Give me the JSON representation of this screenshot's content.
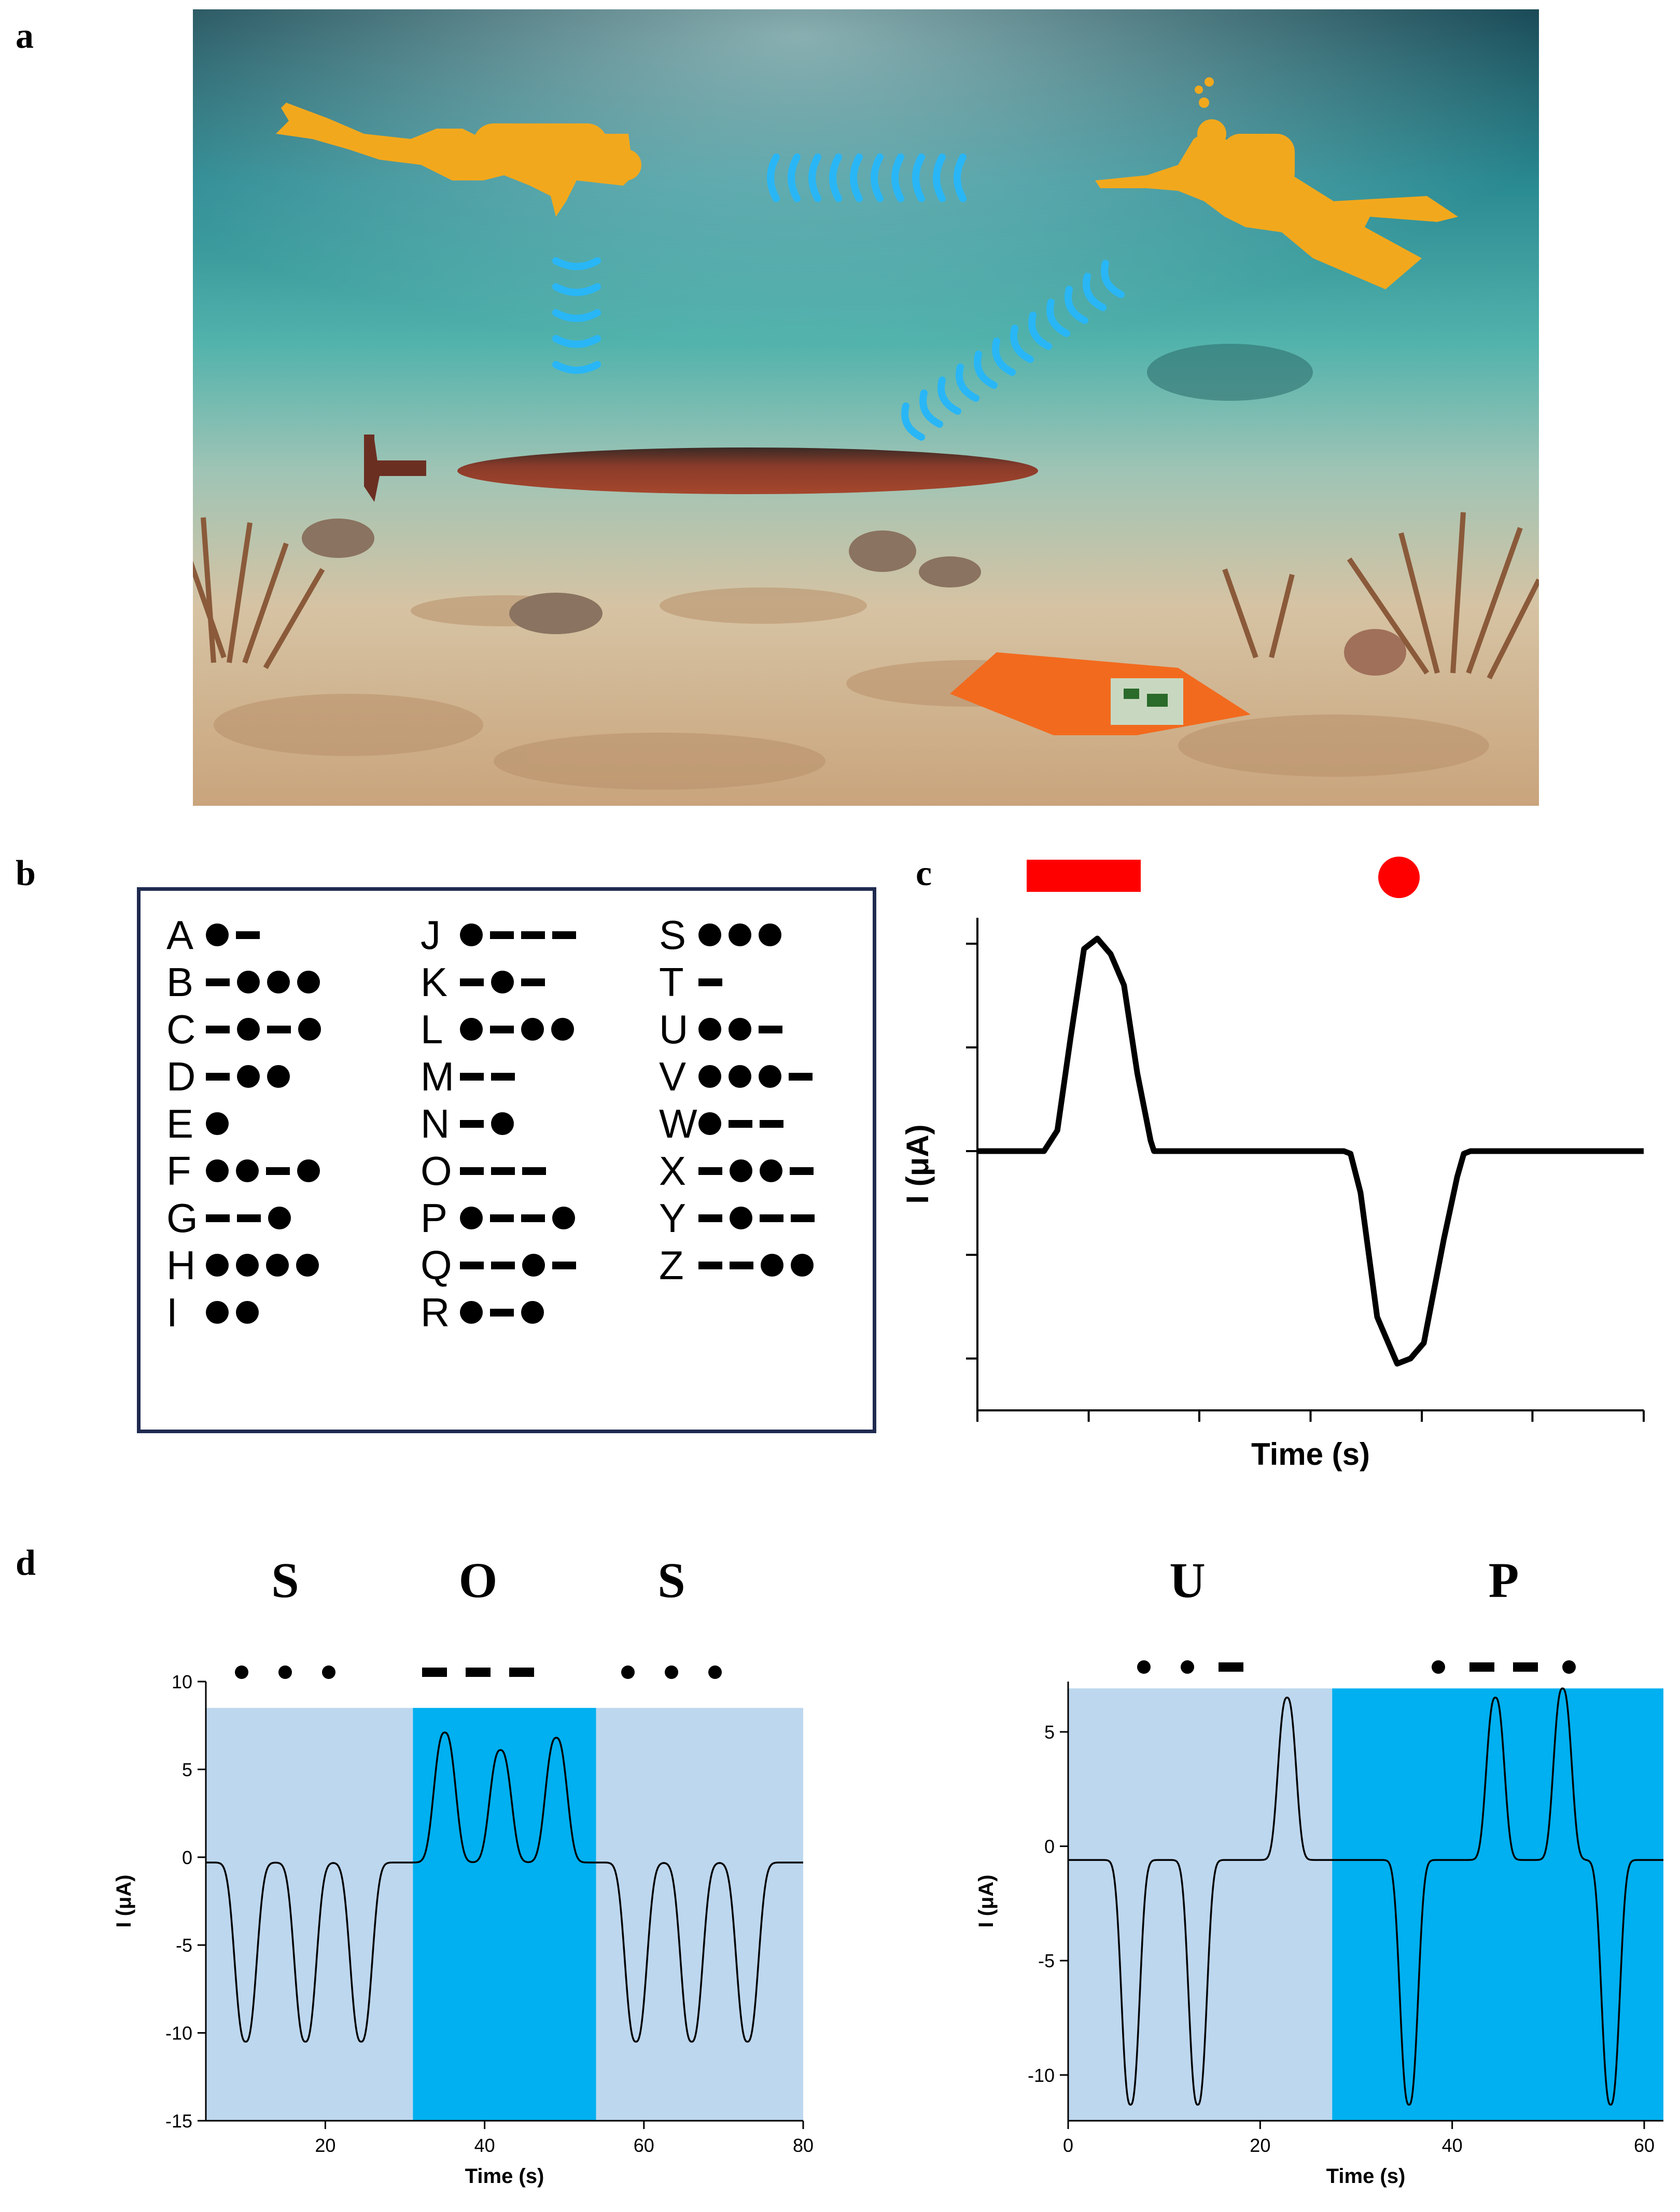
{
  "panels": {
    "a": "a",
    "b": "b",
    "c": "c",
    "d": "d"
  },
  "scene": {
    "description_icons": [
      "diver-left-icon",
      "diver-right-icon",
      "submarine-icon",
      "sensor-device-icon",
      "signal-wave-icon"
    ],
    "colors": {
      "water_top": "#0f4a58",
      "water_mid": "#2b9aa0",
      "sand": "#d8bc97",
      "diver": "#f2a81d",
      "wave": "#29b6f6",
      "submarine": "#8a3b2a",
      "device": "#f26a1e"
    }
  },
  "morse_table": {
    "columns": [
      [
        {
          "letter": "A",
          "code": ".-"
        },
        {
          "letter": "B",
          "code": "-..."
        },
        {
          "letter": "C",
          "code": "-.-."
        },
        {
          "letter": "D",
          "code": "-.."
        },
        {
          "letter": "E",
          "code": "."
        },
        {
          "letter": "F",
          "code": "..-."
        },
        {
          "letter": "G",
          "code": "--."
        },
        {
          "letter": "H",
          "code": "...."
        },
        {
          "letter": "I",
          "code": ".."
        }
      ],
      [
        {
          "letter": "J",
          "code": ".---"
        },
        {
          "letter": "K",
          "code": "-.-"
        },
        {
          "letter": "L",
          "code": ".-.."
        },
        {
          "letter": "M",
          "code": "--"
        },
        {
          "letter": "N",
          "code": "-."
        },
        {
          "letter": "O",
          "code": "---"
        },
        {
          "letter": "P",
          "code": ".--."
        },
        {
          "letter": "Q",
          "code": "--.-"
        },
        {
          "letter": "R",
          "code": ".-."
        }
      ],
      [
        {
          "letter": "S",
          "code": "..."
        },
        {
          "letter": "T",
          "code": "-"
        },
        {
          "letter": "U",
          "code": "..-"
        },
        {
          "letter": "V",
          "code": "...-"
        },
        {
          "letter": "W",
          "code": ".--"
        },
        {
          "letter": "X",
          "code": "-..-"
        },
        {
          "letter": "Y",
          "code": "-.--"
        },
        {
          "letter": "Z",
          "code": "--.."
        }
      ]
    ]
  },
  "chart_data": [
    {
      "id": "c",
      "type": "line",
      "xlabel": "Time (s)",
      "ylabel": "I (μA)",
      "legend_symbols": [
        {
          "shape": "dash",
          "color": "#ff0000"
        },
        {
          "shape": "dot",
          "color": "#ff0000"
        }
      ],
      "xlim": [
        0,
        10
      ],
      "ylim": [
        -5,
        4.5
      ],
      "x_ticks": [
        0,
        1.67,
        3.33,
        5,
        6.67,
        8.33,
        10
      ],
      "y_ticks": [
        -4,
        -2,
        0,
        2,
        4
      ],
      "series": [
        {
          "color": "#000000",
          "x": [
            0,
            1.0,
            1.05,
            1.2,
            1.4,
            1.6,
            1.8,
            2.0,
            2.2,
            2.4,
            2.6,
            2.65,
            2.7,
            3.5,
            5.5,
            5.6,
            5.75,
            6.0,
            6.3,
            6.5,
            6.7,
            7.0,
            7.2,
            7.3,
            7.4,
            7.5,
            8.5,
            10
          ],
          "y": [
            0,
            0,
            0.1,
            0.4,
            2.2,
            3.9,
            4.1,
            3.8,
            3.2,
            1.5,
            0.2,
            0,
            0,
            0,
            0,
            -0.05,
            -0.8,
            -3.2,
            -4.1,
            -4.0,
            -3.7,
            -1.7,
            -0.5,
            -0.05,
            0,
            0,
            0,
            0
          ]
        }
      ]
    },
    {
      "id": "d-left",
      "type": "line",
      "xlabel": "Time (s)",
      "ylabel": "I (μA)",
      "xlim": [
        5,
        80
      ],
      "ylim": [
        -15,
        10
      ],
      "x_ticks": [
        20,
        40,
        60,
        80
      ],
      "y_ticks": [
        -15,
        -10,
        -5,
        0,
        5,
        10
      ],
      "letters": [
        "S",
        "O",
        "S"
      ],
      "letter_codes": [
        "...",
        "---",
        "..."
      ],
      "shaded_regions": [
        {
          "x0": 5,
          "x1": 31,
          "color": "#bdd7ee"
        },
        {
          "x0": 31,
          "x1": 54,
          "color": "#00b0f0"
        },
        {
          "x0": 54,
          "x1": 80,
          "color": "#bdd7ee"
        }
      ],
      "shade_top": 8.5,
      "baseline": -0.3,
      "pulses": [
        {
          "center": 10,
          "amp": -10.5,
          "width": 1.3
        },
        {
          "center": 17.5,
          "amp": -10.5,
          "width": 1.3
        },
        {
          "center": 24.5,
          "amp": -10.5,
          "width": 1.3
        },
        {
          "center": 35,
          "amp": 7.1,
          "width": 1.3
        },
        {
          "center": 42,
          "amp": 6.1,
          "width": 1.3
        },
        {
          "center": 49,
          "amp": 6.8,
          "width": 1.3
        },
        {
          "center": 59,
          "amp": -10.5,
          "width": 1.3
        },
        {
          "center": 66,
          "amp": -10.5,
          "width": 1.3
        },
        {
          "center": 73,
          "amp": -10.5,
          "width": 1.3
        }
      ]
    },
    {
      "id": "d-right",
      "type": "line",
      "xlabel": "Time (s)",
      "ylabel": "I (μA)",
      "xlim": [
        0,
        62
      ],
      "ylim": [
        -12,
        7.2
      ],
      "x_ticks": [
        0,
        20,
        40,
        60
      ],
      "y_ticks": [
        -10,
        -5,
        0,
        5
      ],
      "letters": [
        "U",
        "P"
      ],
      "letter_codes": [
        "..-",
        ".--."
      ],
      "shaded_regions": [
        {
          "x0": 0,
          "x1": 27.5,
          "color": "#bdd7ee"
        },
        {
          "x0": 27.5,
          "x1": 62,
          "color": "#00b0f0"
        }
      ],
      "shade_top": 6.9,
      "baseline": -0.6,
      "pulses": [
        {
          "center": 6.5,
          "amp": -11.3,
          "width": 0.9
        },
        {
          "center": 13.5,
          "amp": -11.3,
          "width": 0.9
        },
        {
          "center": 22.8,
          "amp": 6.5,
          "width": 0.9
        },
        {
          "center": 35.5,
          "amp": -11.3,
          "width": 0.9
        },
        {
          "center": 44.5,
          "amp": 6.5,
          "width": 0.9
        },
        {
          "center": 51.5,
          "amp": 6.9,
          "width": 0.9
        },
        {
          "center": 56.5,
          "amp": -11.3,
          "width": 0.9
        }
      ]
    }
  ]
}
